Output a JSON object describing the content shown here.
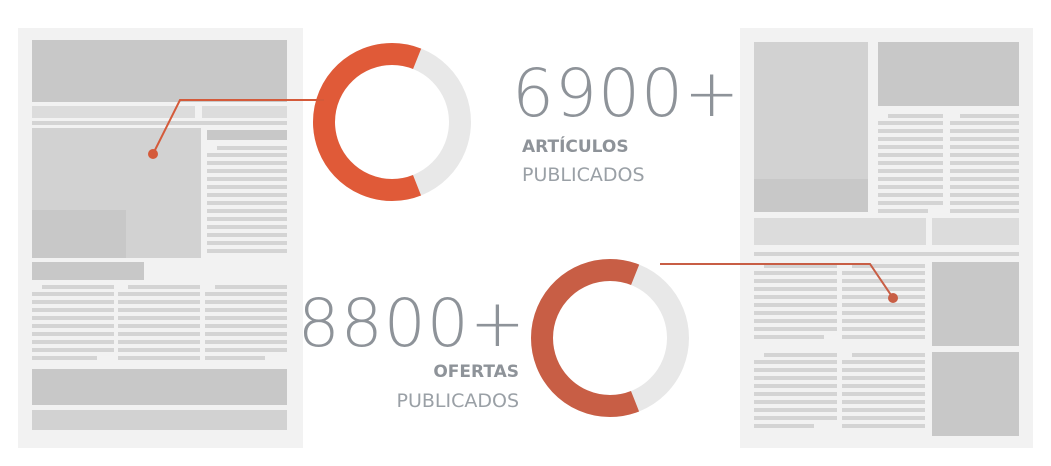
{
  "stats": [
    {
      "value": "6900+",
      "label_bold": "ARTÍCULOS",
      "label_light": "PUBLICADOS",
      "fraction": 0.62
    },
    {
      "value": "8800+",
      "label_bold": "OFERTAS",
      "label_light": "PUBLICADOS",
      "fraction": 0.62
    }
  ],
  "colors": {
    "accent_primary": "#e05a38",
    "accent_secondary": "#c85e45",
    "ring_track": "#e8e8e8",
    "text": "#8e9399"
  }
}
